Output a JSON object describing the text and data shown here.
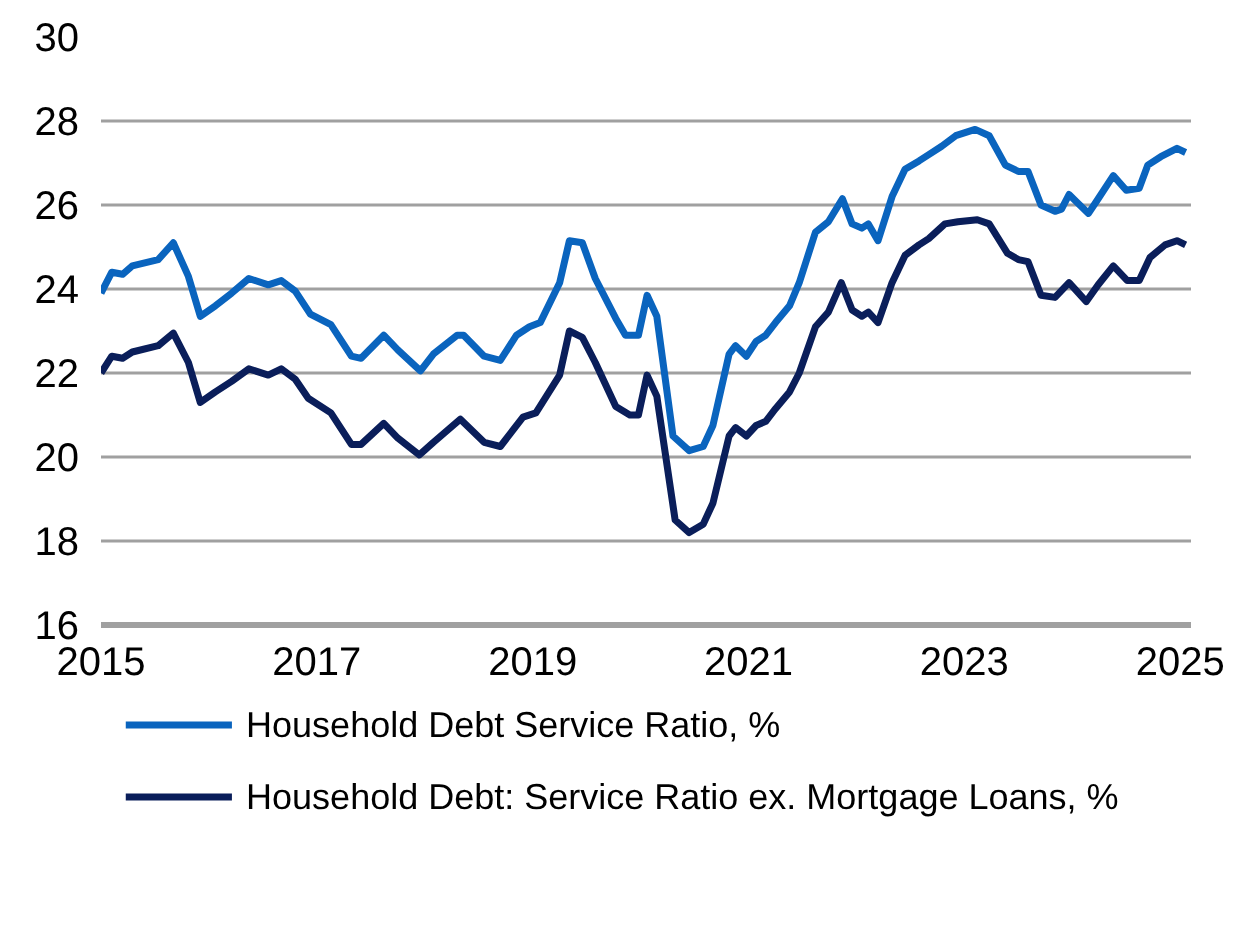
{
  "chart_data": {
    "type": "line",
    "xlim": [
      2015,
      2025.1
    ],
    "xticks": [
      2015,
      2017,
      2019,
      2021,
      2023,
      2025
    ],
    "ylim": [
      16,
      30
    ],
    "yticks": [
      16,
      18,
      20,
      22,
      24,
      26,
      28,
      30
    ],
    "grid": "y",
    "legend": "bottom",
    "line_style": "solid",
    "marker": "none",
    "series": [
      {
        "name": "Household Debt Service Ratio, %",
        "color": "#0a64be",
        "x": [
          2015.0,
          2015.1,
          2015.2,
          2015.29,
          2015.53,
          2015.67,
          2015.81,
          2015.92,
          2016.06,
          2016.21,
          2016.37,
          2016.55,
          2016.67,
          2016.8,
          2016.94,
          2017.13,
          2017.32,
          2017.41,
          2017.62,
          2017.75,
          2017.96,
          2018.08,
          2018.3,
          2018.36,
          2018.55,
          2018.7,
          2018.85,
          2018.97,
          2019.07,
          2019.25,
          2019.34,
          2019.46,
          2019.58,
          2019.77,
          2019.86,
          2019.98,
          2020.06,
          2020.15,
          2020.3,
          2020.45,
          2020.58,
          2020.67,
          2020.82,
          2020.88,
          2020.98,
          2021.07,
          2021.16,
          2021.25,
          2021.38,
          2021.47,
          2021.62,
          2021.74,
          2021.87,
          2021.96,
          2022.05,
          2022.11,
          2022.2,
          2022.33,
          2022.45,
          2022.58,
          2022.67,
          2022.79,
          2022.92,
          2023.1,
          2023.23,
          2023.38,
          2023.5,
          2023.59,
          2023.71,
          2023.84,
          2023.9,
          2023.97,
          2024.05,
          2024.15,
          2024.24,
          2024.38,
          2024.5,
          2024.62,
          2024.7,
          2024.82,
          2024.97,
          2025.05
        ],
        "values": [
          23.9,
          24.4,
          24.35,
          24.55,
          24.7,
          25.1,
          24.3,
          23.35,
          23.6,
          23.9,
          24.25,
          24.1,
          24.2,
          23.95,
          23.4,
          23.15,
          22.4,
          22.35,
          22.9,
          22.55,
          22.05,
          22.45,
          22.9,
          22.9,
          22.4,
          22.3,
          22.9,
          23.1,
          23.2,
          24.15,
          25.15,
          25.1,
          24.25,
          23.3,
          22.9,
          22.9,
          23.85,
          23.35,
          20.5,
          20.15,
          20.25,
          20.75,
          22.45,
          22.65,
          22.4,
          22.75,
          22.9,
          23.2,
          23.6,
          24.15,
          25.35,
          25.6,
          26.15,
          25.55,
          25.45,
          25.55,
          25.15,
          26.2,
          26.85,
          27.05,
          27.2,
          27.4,
          27.65,
          27.8,
          27.65,
          26.95,
          26.8,
          26.8,
          26.0,
          25.85,
          25.9,
          26.25,
          26.05,
          25.8,
          26.15,
          26.7,
          26.35,
          26.4,
          26.95,
          27.15,
          27.35,
          27.25
        ]
      },
      {
        "name": "Household Debt: Service Ratio ex. Mortgage Loans, %",
        "color": "#0a1e5a",
        "x": [
          2015.0,
          2015.1,
          2015.2,
          2015.29,
          2015.53,
          2015.67,
          2015.81,
          2015.92,
          2016.06,
          2016.21,
          2016.37,
          2016.55,
          2016.67,
          2016.8,
          2016.92,
          2017.13,
          2017.32,
          2017.41,
          2017.62,
          2017.75,
          2017.95,
          2018.08,
          2018.33,
          2018.55,
          2018.7,
          2018.91,
          2019.03,
          2019.25,
          2019.34,
          2019.46,
          2019.58,
          2019.77,
          2019.9,
          2019.98,
          2020.06,
          2020.15,
          2020.32,
          2020.45,
          2020.58,
          2020.67,
          2020.82,
          2020.88,
          2020.98,
          2021.07,
          2021.16,
          2021.25,
          2021.38,
          2021.47,
          2021.62,
          2021.74,
          2021.86,
          2021.96,
          2022.05,
          2022.11,
          2022.2,
          2022.33,
          2022.45,
          2022.58,
          2022.67,
          2022.82,
          2022.94,
          2023.12,
          2023.23,
          2023.4,
          2023.5,
          2023.59,
          2023.71,
          2023.84,
          2023.97,
          2024.13,
          2024.24,
          2024.38,
          2024.51,
          2024.62,
          2024.72,
          2024.86,
          2024.97,
          2025.05
        ],
        "values": [
          22.0,
          22.4,
          22.35,
          22.5,
          22.65,
          22.95,
          22.25,
          21.3,
          21.55,
          21.8,
          22.1,
          21.95,
          22.1,
          21.85,
          21.4,
          21.05,
          20.3,
          20.3,
          20.8,
          20.45,
          20.05,
          20.35,
          20.9,
          20.35,
          20.25,
          20.95,
          21.05,
          21.95,
          23.0,
          22.85,
          22.25,
          21.2,
          21.0,
          21.0,
          21.95,
          21.45,
          18.5,
          18.2,
          18.4,
          18.9,
          20.5,
          20.7,
          20.5,
          20.75,
          20.85,
          21.15,
          21.55,
          22.0,
          23.1,
          23.45,
          24.15,
          23.5,
          23.35,
          23.45,
          23.2,
          24.15,
          24.8,
          25.05,
          25.2,
          25.55,
          25.6,
          25.65,
          25.55,
          24.85,
          24.7,
          24.65,
          23.85,
          23.8,
          24.15,
          23.7,
          24.1,
          24.55,
          24.2,
          24.2,
          24.75,
          25.05,
          25.15,
          25.05
        ]
      }
    ]
  }
}
